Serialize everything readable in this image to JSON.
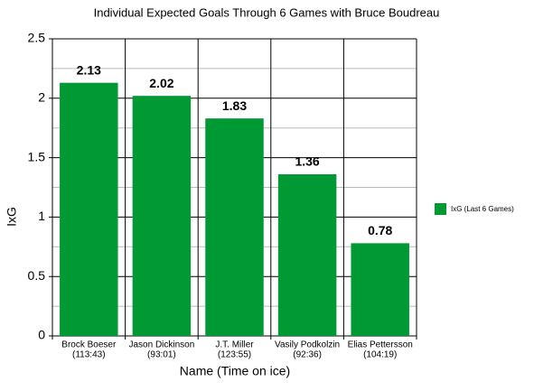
{
  "chart_data": {
    "type": "bar",
    "title": "Individual Expected Goals Through 6 Games with Bruce Boudreau",
    "x_label": "Name (Time on ice)",
    "y_label": "IxG",
    "categories": [
      [
        "Brock Boeser",
        "(113:43)"
      ],
      [
        "Jason Dickinson",
        "(93:01)"
      ],
      [
        "J.T. Miller",
        "(123:55)"
      ],
      [
        "Vasily Podkolzin",
        "(92:36)"
      ],
      [
        "Elias Pettersson",
        "(104:19)"
      ]
    ],
    "series": [
      {
        "name": "IxG (Last 6 Games)",
        "color": "#009933",
        "values": [
          2.13,
          2.02,
          1.83,
          1.36,
          0.78
        ]
      }
    ],
    "ylim": [
      0,
      2.5
    ],
    "yticks": [
      0,
      0.5,
      1,
      1.5,
      2,
      2.5
    ],
    "yminorticks": [
      0.25,
      0.75,
      1.25,
      1.75,
      2.25
    ],
    "grid": true,
    "legend": "right"
  }
}
